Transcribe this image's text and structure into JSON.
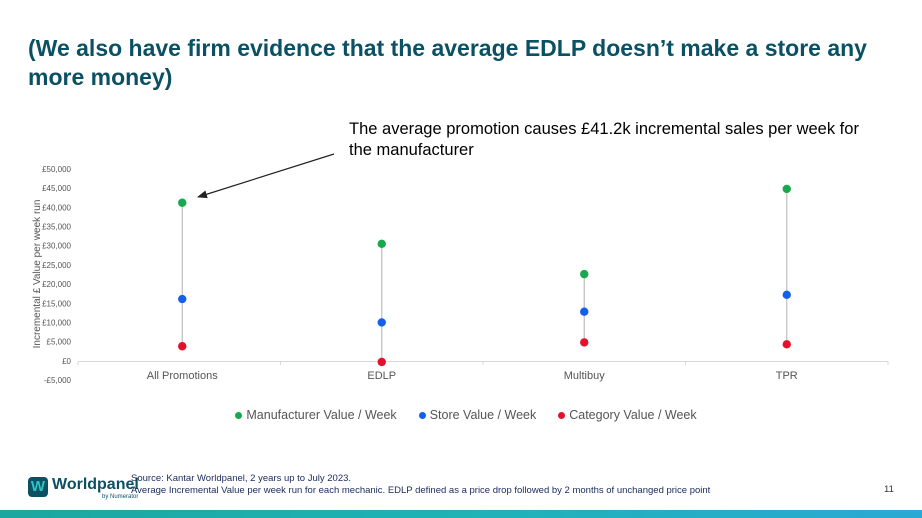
{
  "slide": {
    "title": "(We also have firm evidence that the average EDLP doesn’t make a store any more money)",
    "callout": "The average promotion causes £41.2k incremental sales per week for the manufacturer",
    "source_line1": "Source: Kantar Worldpanel, 2 years up to July 2023.",
    "source_line2": "Average Incremental Value per week run for each mechanic. EDLP defined as a price drop followed by 2 months of unchanged price point",
    "page_number": "11",
    "logo_name": "Worldpanel",
    "logo_sub": "by Numerator"
  },
  "colors": {
    "title": "#0b5063",
    "manufacturer": "#18a84e",
    "store": "#1560e8",
    "category": "#e3122b"
  },
  "chart_data": {
    "type": "scatter",
    "ylabel": "Incremental £ Value per week run",
    "categories": [
      "All Promotions",
      "EDLP",
      "Multibuy",
      "TPR"
    ],
    "ylim": [
      -5000,
      50000
    ],
    "yticks": [
      -5000,
      0,
      5000,
      10000,
      15000,
      20000,
      25000,
      30000,
      35000,
      40000,
      45000,
      50000
    ],
    "ytick_labels": [
      "-£5,000",
      "£0",
      "£5,000",
      "£10,000",
      "£15,000",
      "£20,000",
      "£25,000",
      "£30,000",
      "£35,000",
      "£40,000",
      "£45,000",
      "£50,000"
    ],
    "series": [
      {
        "name": "Manufacturer Value / Week",
        "color": "#18a84e",
        "values": [
          41200,
          30500,
          22600,
          44800
        ]
      },
      {
        "name": "Store Value / Week",
        "color": "#1560e8",
        "values": [
          16100,
          10000,
          12800,
          17200
        ]
      },
      {
        "name": "Category Value / Week",
        "color": "#e3122b",
        "values": [
          3800,
          -300,
          4800,
          4300
        ]
      }
    ]
  }
}
